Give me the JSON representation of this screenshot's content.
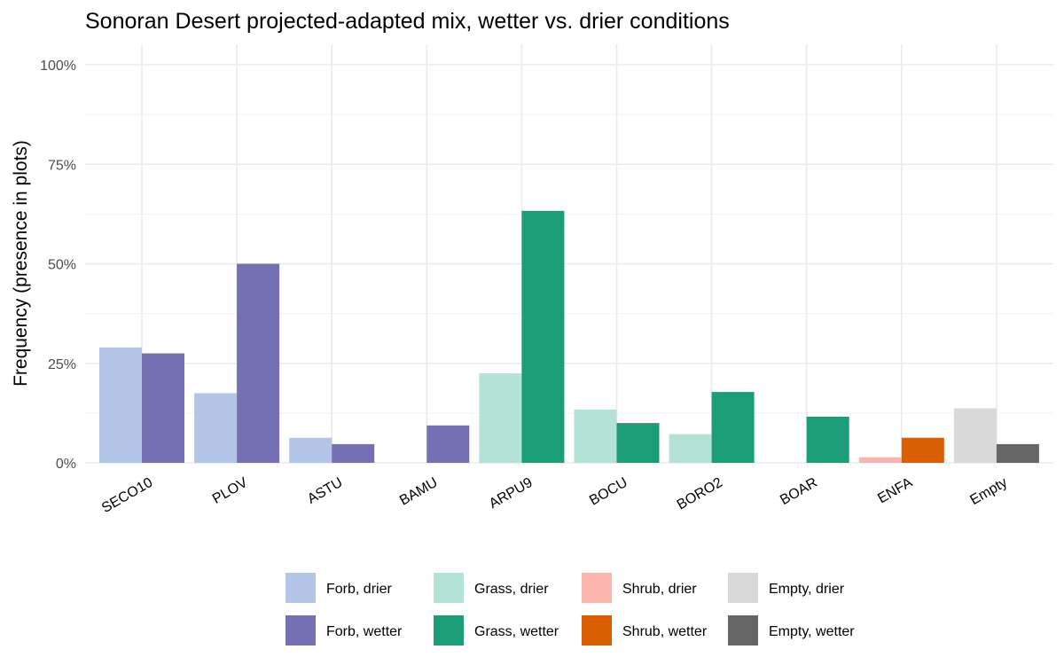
{
  "chart_data": {
    "type": "bar",
    "title": "Sonoran Desert projected-adapted mix, wetter vs. drier conditions",
    "ylabel": "Frequency (presence in plots)",
    "xlabel": "",
    "ylim": [
      0,
      1
    ],
    "yticks": [
      0,
      0.25,
      0.5,
      0.75,
      1.0
    ],
    "ytick_labels": [
      "0%",
      "25%",
      "50%",
      "75%",
      "100%"
    ],
    "grid": true,
    "legend_position": "bottom",
    "categories": [
      "SECO10",
      "PLOV",
      "ASTU",
      "BAMU",
      "ARPU9",
      "BOCU",
      "BORO2",
      "BOAR",
      "ENFA",
      "Empty"
    ],
    "bars": [
      {
        "category": "SECO10",
        "condition": "drier",
        "group": "Forb, drier",
        "value": 0.29
      },
      {
        "category": "SECO10",
        "condition": "wetter",
        "group": "Forb, wetter",
        "value": 0.275
      },
      {
        "category": "PLOV",
        "condition": "drier",
        "group": "Forb, drier",
        "value": 0.175
      },
      {
        "category": "PLOV",
        "condition": "wetter",
        "group": "Forb, wetter",
        "value": 0.5
      },
      {
        "category": "ASTU",
        "condition": "drier",
        "group": "Forb, drier",
        "value": 0.063
      },
      {
        "category": "ASTU",
        "condition": "wetter",
        "group": "Forb, wetter",
        "value": 0.047
      },
      {
        "category": "BAMU",
        "condition": "drier",
        "group": "Forb, drier",
        "value": 0
      },
      {
        "category": "BAMU",
        "condition": "wetter",
        "group": "Forb, wetter",
        "value": 0.094
      },
      {
        "category": "ARPU9",
        "condition": "drier",
        "group": "Grass, drier",
        "value": 0.225
      },
      {
        "category": "ARPU9",
        "condition": "wetter",
        "group": "Grass, wetter",
        "value": 0.633
      },
      {
        "category": "BOCU",
        "condition": "drier",
        "group": "Grass, drier",
        "value": 0.134
      },
      {
        "category": "BOCU",
        "condition": "wetter",
        "group": "Grass, wetter",
        "value": 0.1
      },
      {
        "category": "BORO2",
        "condition": "drier",
        "group": "Grass, drier",
        "value": 0.072
      },
      {
        "category": "BORO2",
        "condition": "wetter",
        "group": "Grass, wetter",
        "value": 0.178
      },
      {
        "category": "BOAR",
        "condition": "drier",
        "group": "Grass, drier",
        "value": 0
      },
      {
        "category": "BOAR",
        "condition": "wetter",
        "group": "Grass, wetter",
        "value": 0.116
      },
      {
        "category": "ENFA",
        "condition": "drier",
        "group": "Shrub, drier",
        "value": 0.014
      },
      {
        "category": "ENFA",
        "condition": "wetter",
        "group": "Shrub, wetter",
        "value": 0.063
      },
      {
        "category": "Empty",
        "condition": "drier",
        "group": "Empty, drier",
        "value": 0.137
      },
      {
        "category": "Empty",
        "condition": "wetter",
        "group": "Empty, wetter",
        "value": 0.047
      }
    ],
    "legend": [
      {
        "label": "Forb, drier",
        "color": "#b3c6e7"
      },
      {
        "label": "Grass, drier",
        "color": "#b3e2d6"
      },
      {
        "label": "Shrub, drier",
        "color": "#fbb4ae"
      },
      {
        "label": "Empty, drier",
        "color": "#d9d9d9"
      },
      {
        "label": "Forb, wetter",
        "color": "#7570b3"
      },
      {
        "label": "Grass, wetter",
        "color": "#1b9e77"
      },
      {
        "label": "Shrub, wetter",
        "color": "#d95f02"
      },
      {
        "label": "Empty, wetter",
        "color": "#666666"
      }
    ]
  }
}
